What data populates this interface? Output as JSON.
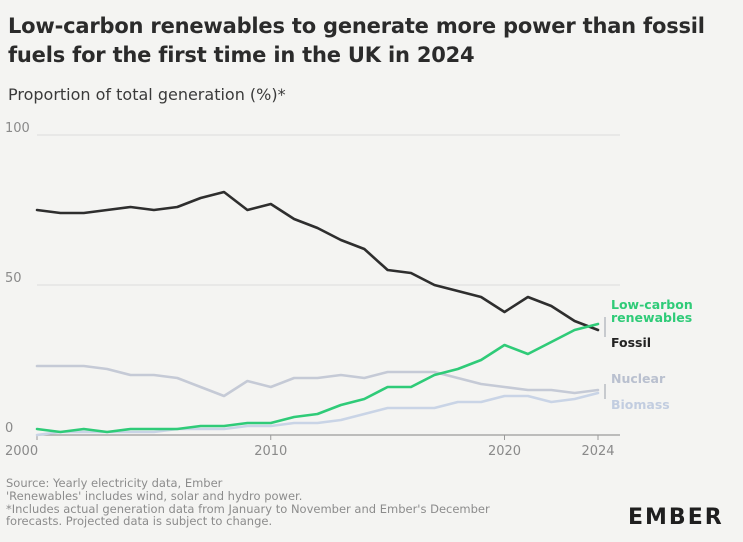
{
  "title": "Low-carbon renewables to generate more power than fossil fuels for the first time in the UK in 2024",
  "subtitle": "Proportion of total generation (%)*",
  "source_lines": [
    "Source: Yearly electricity data, Ember",
    "'Renewables' includes wind, solar and hydro power.",
    "*Includes actual generation data from January to November and Ember's December",
    "forecasts. Projected data is subject to change."
  ],
  "logo": "EMBER",
  "colors": {
    "fossil": "#2e2e2e",
    "renewables": "#2fcb78",
    "nuclear": "#c5cad6",
    "biomass": "#c9d4e6",
    "grid": "#dcdcdc",
    "nuclear_label": "#b9c0cf",
    "biomass_label": "#c2cde0"
  },
  "chart_data": {
    "type": "line",
    "title": "Low-carbon renewables to generate more power than fossil fuels for the first time in the UK in 2024",
    "ylabel": "Proportion of total generation (%)*",
    "xlabel": "",
    "xlim": [
      2000,
      2024
    ],
    "ylim": [
      0,
      100
    ],
    "x_ticks": [
      2000,
      2010,
      2020,
      2024
    ],
    "y_ticks": [
      0,
      50,
      100
    ],
    "x": [
      2000,
      2001,
      2002,
      2003,
      2004,
      2005,
      2006,
      2007,
      2008,
      2009,
      2010,
      2011,
      2012,
      2013,
      2014,
      2015,
      2016,
      2017,
      2018,
      2019,
      2020,
      2021,
      2022,
      2023,
      2024
    ],
    "series": [
      {
        "name": "Fossil",
        "label_lines": [
          "Fossil"
        ],
        "color_key": "fossil",
        "values": [
          75,
          74,
          74,
          75,
          76,
          75,
          76,
          79,
          81,
          75,
          77,
          72,
          69,
          65,
          62,
          55,
          54,
          50,
          48,
          46,
          41,
          46,
          43,
          38,
          35
        ]
      },
      {
        "name": "Low-carbon renewables",
        "label_lines": [
          "Low-carbon",
          "renewables"
        ],
        "color_key": "renewables",
        "values": [
          2,
          1,
          2,
          1,
          2,
          2,
          2,
          3,
          3,
          4,
          4,
          6,
          7,
          10,
          12,
          16,
          16,
          20,
          22,
          25,
          30,
          27,
          31,
          35,
          37
        ]
      },
      {
        "name": "Nuclear",
        "label_lines": [
          "Nuclear"
        ],
        "color_key": "nuclear",
        "values": [
          23,
          23,
          23,
          22,
          20,
          20,
          19,
          16,
          13,
          18,
          16,
          19,
          19,
          20,
          19,
          21,
          21,
          21,
          19,
          17,
          16,
          15,
          15,
          14,
          15
        ]
      },
      {
        "name": "Biomass",
        "label_lines": [
          "Biomass"
        ],
        "color_key": "biomass",
        "values": [
          0,
          1,
          1,
          1,
          1,
          1,
          2,
          2,
          2,
          3,
          3,
          4,
          4,
          5,
          7,
          9,
          9,
          9,
          11,
          11,
          13,
          13,
          11,
          12,
          14
        ]
      }
    ]
  }
}
